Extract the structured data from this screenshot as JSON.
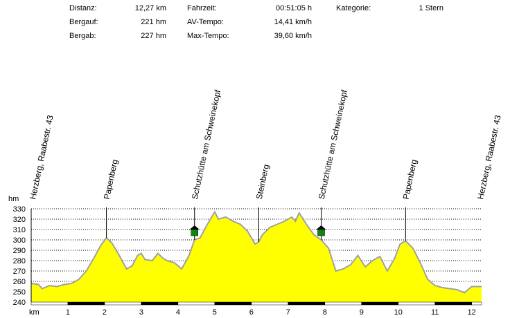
{
  "stats": [
    {
      "label": "Distanz:",
      "value": "12,27 km"
    },
    {
      "label": "Bergauf:",
      "value": "221 hm"
    },
    {
      "label": "Bergab:",
      "value": "227 hm"
    },
    {
      "label": "Fahrzeit:",
      "value": "00:51:05 h"
    },
    {
      "label": "AV-Tempo:",
      "value": "14,41 km/h"
    },
    {
      "label": "Max-Tempo:",
      "value": "39,60 km/h"
    },
    {
      "label": "Kategorie:",
      "value": "1 Stern"
    }
  ],
  "chart_data": {
    "type": "area",
    "ylabel": "hm",
    "xlabel": "km",
    "ylim": [
      240,
      330
    ],
    "xlim": [
      0,
      12.27
    ],
    "yticks": [
      240,
      250,
      260,
      270,
      280,
      290,
      300,
      310,
      320,
      330
    ],
    "xticks": [
      1,
      2,
      3,
      4,
      5,
      6,
      7,
      8,
      9,
      10,
      11,
      12
    ],
    "grid": "horizontal-dotted",
    "fill_color": "#ffff00",
    "line_color": "#a0a0a0",
    "x": [
      0,
      0.2,
      0.3,
      0.5,
      0.7,
      0.9,
      1.1,
      1.3,
      1.5,
      1.7,
      1.9,
      2.05,
      2.2,
      2.4,
      2.6,
      2.75,
      2.9,
      3.0,
      3.1,
      3.3,
      3.45,
      3.6,
      3.7,
      3.9,
      4.1,
      4.3,
      4.45,
      4.6,
      4.8,
      5.0,
      5.1,
      5.3,
      5.5,
      5.7,
      5.9,
      6.1,
      6.2,
      6.3,
      6.5,
      6.7,
      6.9,
      7.1,
      7.2,
      7.3,
      7.5,
      7.7,
      7.9,
      8.1,
      8.3,
      8.5,
      8.7,
      8.9,
      9.1,
      9.3,
      9.5,
      9.7,
      9.9,
      10.05,
      10.2,
      10.4,
      10.6,
      10.8,
      11.0,
      11.2,
      11.4,
      11.6,
      11.8,
      12.0,
      12.27
    ],
    "y": [
      258,
      257,
      253,
      256,
      255,
      257,
      258,
      262,
      270,
      282,
      295,
      302,
      297,
      285,
      272,
      275,
      285,
      287,
      281,
      280,
      287,
      282,
      280,
      278,
      272,
      285,
      300,
      302,
      315,
      327,
      320,
      322,
      318,
      315,
      308,
      296,
      298,
      305,
      312,
      315,
      318,
      322,
      318,
      326,
      315,
      305,
      300,
      292,
      270,
      272,
      276,
      285,
      274,
      280,
      284,
      270,
      282,
      296,
      299,
      292,
      278,
      262,
      256,
      254,
      253,
      252,
      249,
      255,
      255
    ],
    "waypoints": [
      {
        "km": 0.0,
        "label": "Herzberg, Raabestr. 43"
      },
      {
        "km": 2.05,
        "label": "Papenberg"
      },
      {
        "km": 4.45,
        "label": "Schutzhütte am Schweinekopf",
        "icon": "hut-icon"
      },
      {
        "km": 6.2,
        "label": "Steinberg"
      },
      {
        "km": 7.9,
        "label": "Schutzhütte am Schweinekopf",
        "icon": "hut-icon"
      },
      {
        "km": 10.2,
        "label": "Papenberg"
      },
      {
        "km": 12.27,
        "label": "Herzberg, Raabestr. 43"
      }
    ]
  }
}
